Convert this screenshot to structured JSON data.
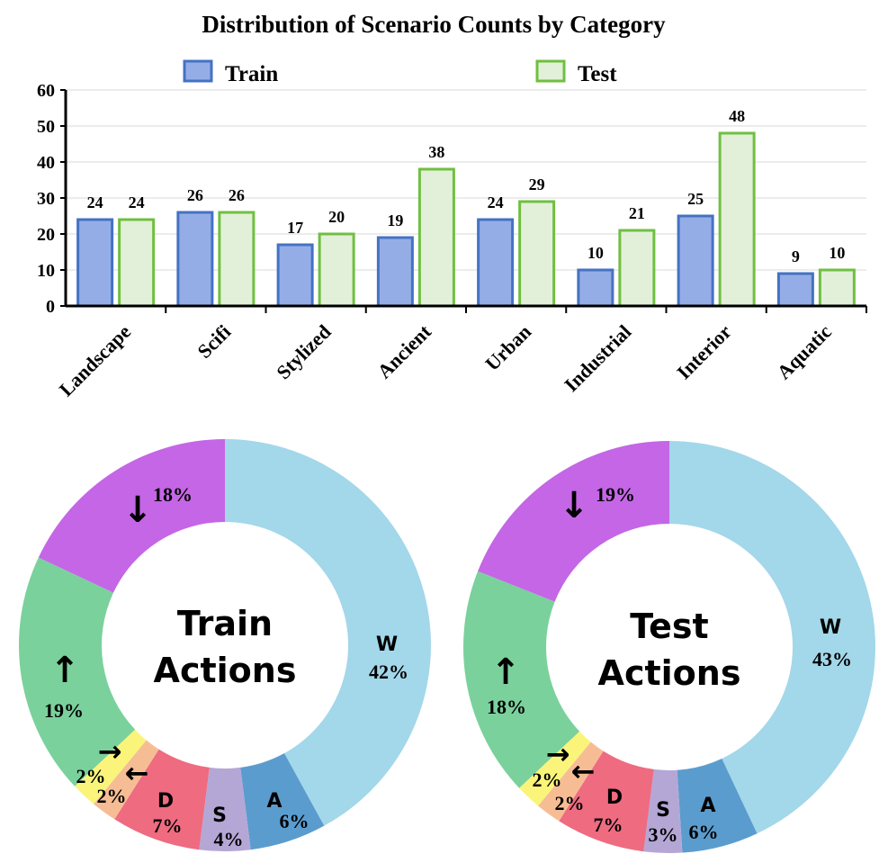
{
  "chart_data": [
    {
      "type": "bar",
      "title": "Distribution of Scenario Counts by Category",
      "categories": [
        "Landscape",
        "Scifi",
        "Stylized",
        "Ancient",
        "Urban",
        "Industrial",
        "Interior",
        "Aquatic"
      ],
      "series": [
        {
          "name": "Train",
          "values": [
            24,
            26,
            17,
            19,
            24,
            10,
            25,
            9
          ],
          "fill": "#95ade6",
          "stroke": "#4472c4"
        },
        {
          "name": "Test",
          "values": [
            24,
            26,
            20,
            38,
            29,
            21,
            48,
            10
          ],
          "fill": "#e2f0d9",
          "stroke": "#70bf41"
        }
      ],
      "ylim": [
        0,
        60
      ],
      "yticks": [
        0,
        10,
        20,
        30,
        40,
        50,
        60
      ],
      "grid": true,
      "legend": "top"
    },
    {
      "type": "pie",
      "center_label": [
        "Train",
        "Actions"
      ],
      "slices": [
        {
          "label": "W",
          "pct": "42%",
          "value": 42,
          "color": "#a3d7ea"
        },
        {
          "label": "A",
          "pct": "6%",
          "value": 6,
          "color": "#5b9cce"
        },
        {
          "label": "S",
          "pct": "4%",
          "value": 4,
          "color": "#b4a7d6"
        },
        {
          "label": "D",
          "pct": "7%",
          "value": 7,
          "color": "#ee6b80"
        },
        {
          "label": "←",
          "pct": "2%",
          "value": 2,
          "color": "#f6bd94"
        },
        {
          "label": "→",
          "pct": "2%",
          "value": 2,
          "color": "#faf57a"
        },
        {
          "label": "↑",
          "pct": "19%",
          "value": 19,
          "color": "#7ad19c"
        },
        {
          "label": "↓",
          "pct": "18%",
          "value": 18,
          "color": "#c466e6"
        }
      ]
    },
    {
      "type": "pie",
      "center_label": [
        "Test",
        "Actions"
      ],
      "slices": [
        {
          "label": "W",
          "pct": "43%",
          "value": 43,
          "color": "#a3d7ea"
        },
        {
          "label": "A",
          "pct": "6%",
          "value": 6,
          "color": "#5b9cce"
        },
        {
          "label": "S",
          "pct": "3%",
          "value": 3,
          "color": "#b4a7d6"
        },
        {
          "label": "D",
          "pct": "7%",
          "value": 7,
          "color": "#ee6b80"
        },
        {
          "label": "←",
          "pct": "2%",
          "value": 2,
          "color": "#f6bd94"
        },
        {
          "label": "→",
          "pct": "2%",
          "value": 2,
          "color": "#faf57a"
        },
        {
          "label": "↑",
          "pct": "18%",
          "value": 18,
          "color": "#7ad19c"
        },
        {
          "label": "↓",
          "pct": "19%",
          "value": 19,
          "color": "#c466e6"
        }
      ]
    }
  ]
}
